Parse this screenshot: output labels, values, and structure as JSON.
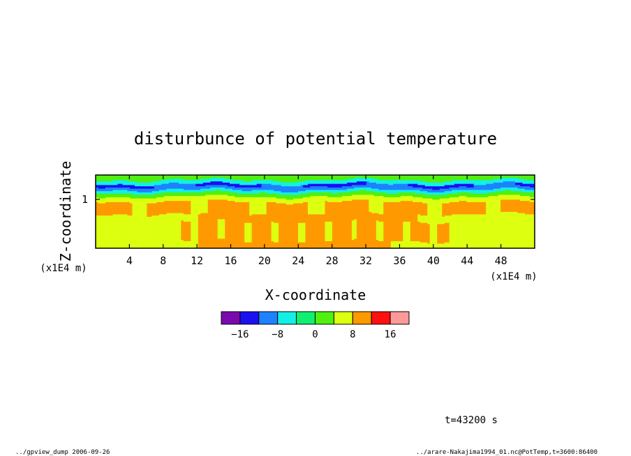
{
  "chart_data": {
    "type": "heatmap",
    "title": "disturbunce of potential temperature",
    "xlabel": "X-coordinate",
    "ylabel": "Z-coordinate",
    "x_unit": "(x1E4 m)",
    "z_unit": "(x1E4 m)",
    "x_ticks": [
      4,
      8,
      12,
      16,
      20,
      24,
      28,
      32,
      36,
      40,
      44,
      48
    ],
    "z_ticks": [
      1
    ],
    "xlim": [
      0,
      52
    ],
    "zlim": [
      0,
      1.5
    ],
    "colorbar": {
      "levels": [
        -20,
        -16,
        -12,
        -8,
        -4,
        0,
        4,
        8,
        12,
        16,
        20
      ],
      "tick_labels": [
        "-16",
        "-8",
        "0",
        "8",
        "16"
      ],
      "colors": [
        "#7a0aad",
        "#1a10f0",
        "#1e82ff",
        "#12f0e6",
        "#10f070",
        "#50f010",
        "#ddff10",
        "#ff9900",
        "#ff1010",
        "#ff9999"
      ]
    },
    "annotation": "t=43200 s"
  },
  "footer": {
    "left": "../gpview_dump  2006-09-26",
    "right": "../arare-Nakajima1994_01.nc@PotTemp,t=3600:86400"
  }
}
